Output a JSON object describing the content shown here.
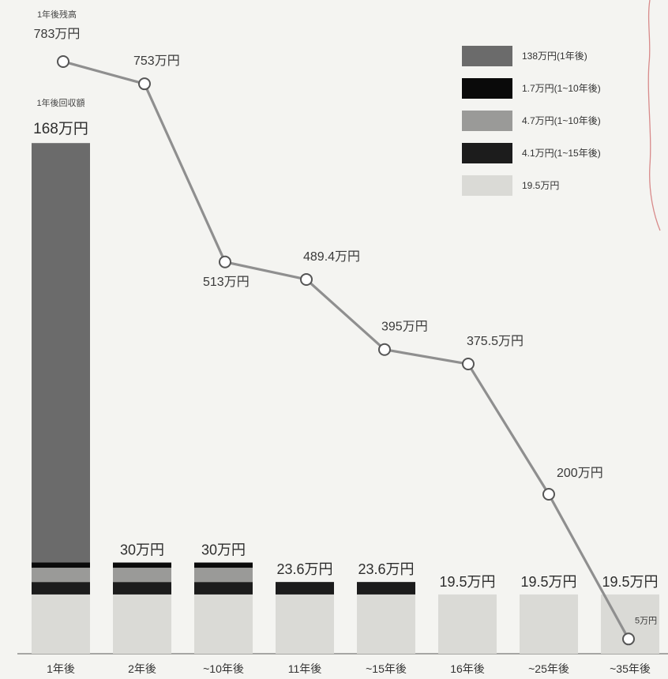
{
  "chart_data": {
    "type": "bar",
    "categories": [
      "1年後",
      "2年後",
      "~10年後",
      "11年後",
      "~15年後",
      "16年後",
      "~25年後",
      "~35年後"
    ],
    "stack_order": [
      "19.5万円",
      "4.1万円(1~15年後)",
      "4.7万円(1~10年後)",
      "1.7万円(1~10年後)",
      "138万円(1年後)"
    ],
    "series": [
      {
        "name": "19.5万円",
        "color": "#dadad6",
        "values": [
          19.5,
          19.5,
          19.5,
          19.5,
          19.5,
          19.5,
          19.5,
          19.5
        ]
      },
      {
        "name": "4.1万円(1~15年後)",
        "color": "#1c1c1c",
        "values": [
          4.1,
          4.1,
          4.1,
          4.1,
          4.1,
          0,
          0,
          0
        ]
      },
      {
        "name": "4.7万円(1~10年後)",
        "color": "#9a9a98",
        "values": [
          4.7,
          4.7,
          4.7,
          0,
          0,
          0,
          0,
          0
        ]
      },
      {
        "name": "1.7万円(1~10年後)",
        "color": "#0a0a0a",
        "values": [
          1.7,
          1.7,
          1.7,
          0,
          0,
          0,
          0,
          0
        ]
      },
      {
        "name": "138万円(1年後)",
        "color": "#6b6b6b",
        "values": [
          138,
          0,
          0,
          0,
          0,
          0,
          0,
          0
        ]
      }
    ],
    "bar_totals": [
      168,
      30,
      30,
      23.6,
      23.6,
      19.5,
      19.5,
      19.5
    ],
    "bar_total_labels": [
      "168万円",
      "30万円",
      "30万円",
      "23.6万円",
      "23.6万円",
      "19.5万円",
      "19.5万円",
      "19.5万円"
    ],
    "first_bar_caption": "1年後回収額",
    "line": {
      "values": [
        783,
        753,
        513,
        489.4,
        395,
        375.5,
        200,
        5
      ],
      "labels": [
        "783万円",
        "753万円",
        "513万円",
        "489.4万円",
        "395万円",
        "375.5万円",
        "200万円",
        "5万円"
      ],
      "first_caption": "1年後残高",
      "color": "#8f8f8f"
    },
    "legend": {
      "placement": "top-right",
      "items": [
        {
          "label": "138万円(1年後)",
          "color": "#6b6b6b"
        },
        {
          "label": "1.7万円(1~10年後)",
          "color": "#0a0a0a"
        },
        {
          "label": "4.7万円(1~10年後)",
          "color": "#9a9a98"
        },
        {
          "label": "4.1万円(1~15年後)",
          "color": "#1c1c1c"
        },
        {
          "label": "19.5万円",
          "color": "#dadad6"
        }
      ]
    },
    "grid": false
  }
}
